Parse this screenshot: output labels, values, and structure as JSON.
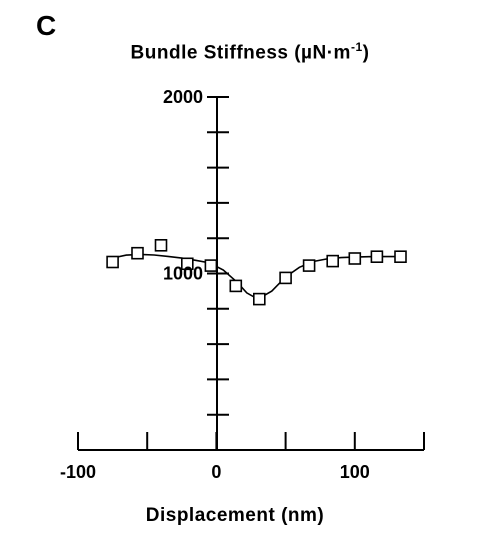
{
  "panel_label": "C",
  "chart_data": {
    "type": "scatter",
    "title_main": "Bundle Stiffness (µN·m",
    "title_exp": "-1",
    "title_close": ")",
    "xlabel": "Displacement (nm)",
    "ylabel": "",
    "xlim": [
      -100,
      150
    ],
    "ylim": [
      0,
      2000
    ],
    "x_tick_labels": [
      {
        "value": -100,
        "label": "-100"
      },
      {
        "value": 0,
        "label": "0"
      },
      {
        "value": 100,
        "label": "100"
      }
    ],
    "y_tick_labels": [
      {
        "value": 2000,
        "label": "2000"
      },
      {
        "value": 1000,
        "label": "1000"
      }
    ],
    "x_ticks": [
      -100,
      -50,
      0,
      50,
      100,
      150
    ],
    "y_ticks": [
      2000,
      1800,
      1600,
      1400,
      1200,
      1000,
      800,
      600,
      400,
      200
    ],
    "grid": false,
    "series": [
      {
        "marker": "open-square",
        "x": [
          -75,
          -57,
          -40,
          -21,
          -4,
          14,
          31,
          50,
          67,
          84,
          100,
          116,
          133
        ],
        "y": [
          1065,
          1115,
          1160,
          1055,
          1045,
          930,
          855,
          975,
          1045,
          1070,
          1085,
          1095,
          1095
        ]
      },
      {
        "style": "line",
        "x": [
          -75,
          -65,
          -55,
          -45,
          -35,
          -25,
          -15,
          -5,
          5,
          15,
          22,
          30,
          40,
          50,
          60,
          70,
          80,
          90,
          100,
          110,
          120,
          133
        ],
        "y": [
          1088,
          1104,
          1108,
          1105,
          1097,
          1087,
          1075,
          1060,
          1020,
          950,
          890,
          855,
          900,
          980,
          1035,
          1068,
          1083,
          1090,
          1093,
          1095,
          1096,
          1096
        ]
      }
    ]
  }
}
